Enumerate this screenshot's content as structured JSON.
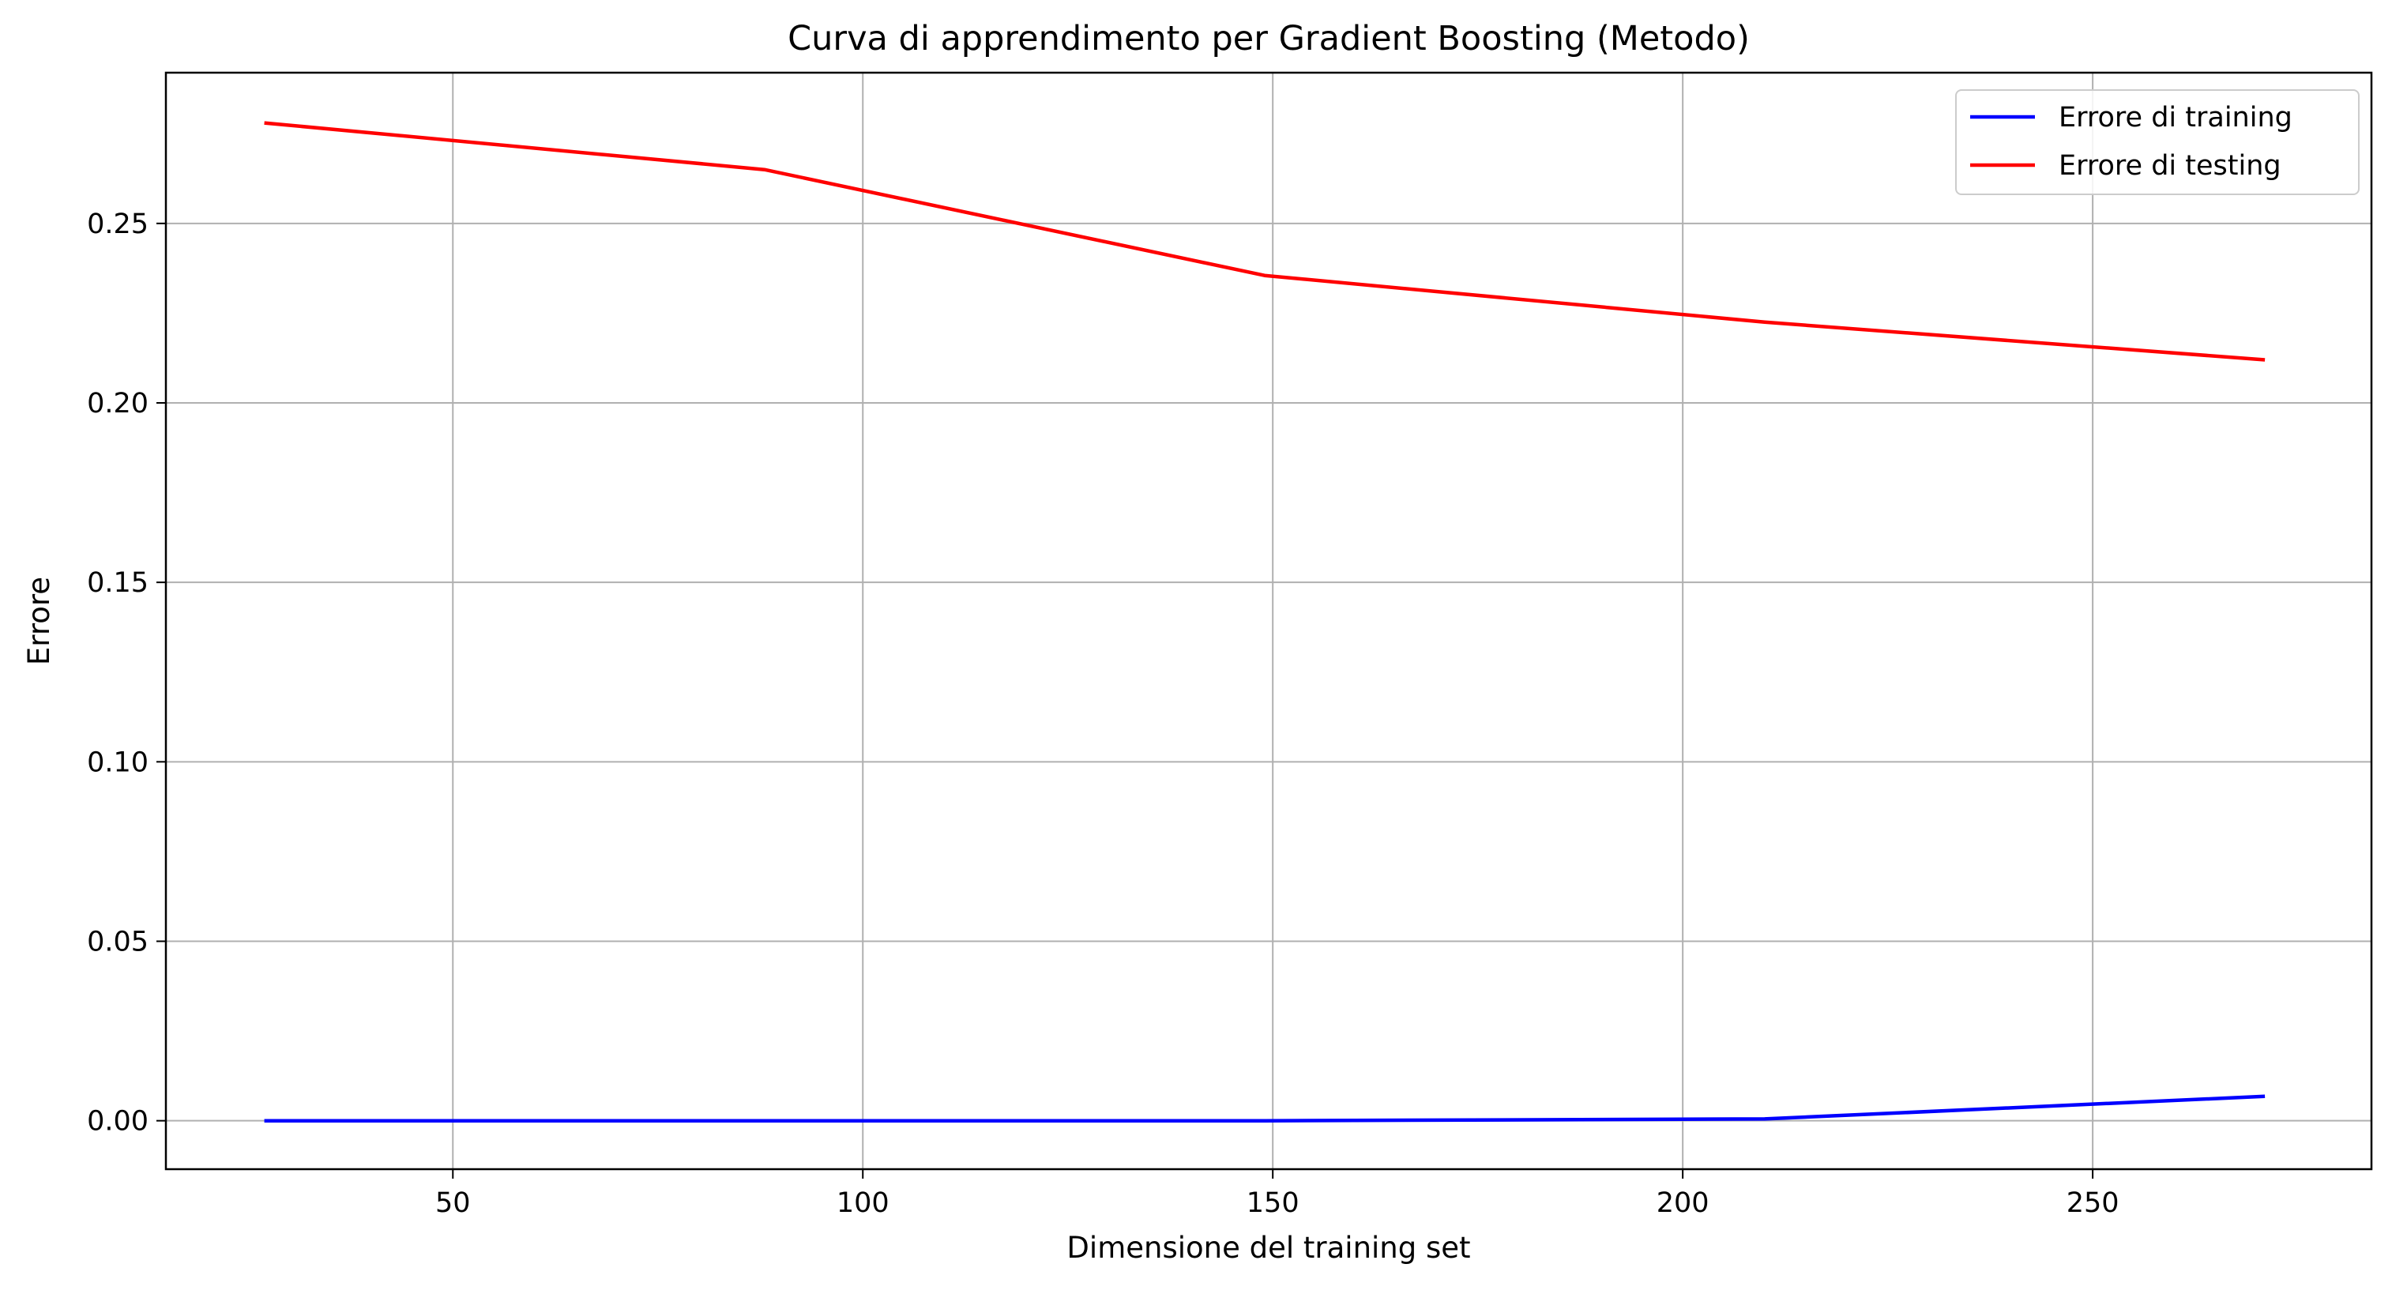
{
  "chart_data": {
    "type": "line",
    "title": "Curva di apprendimento per Gradient Boosting (Metodo)",
    "xlabel": "Dimensione del training set",
    "ylabel": "Errore",
    "xlim": [
      15,
      284
    ],
    "ylim": [
      -0.0135,
      0.292
    ],
    "xticks": [
      50,
      100,
      150,
      200,
      250
    ],
    "xtick_labels": [
      "50",
      "100",
      "150",
      "200",
      "250"
    ],
    "yticks": [
      0.0,
      0.05,
      0.1,
      0.15,
      0.2,
      0.25
    ],
    "ytick_labels": [
      "0.00",
      "0.05",
      "0.10",
      "0.15",
      "0.20",
      "0.25"
    ],
    "grid": true,
    "legend_position": "upper right",
    "x": [
      27,
      88,
      149,
      210,
      271
    ],
    "series": [
      {
        "name": "Errore di training",
        "color": "#0000ff",
        "values": [
          0.0,
          0.0,
          0.0,
          0.0005,
          0.0068
        ]
      },
      {
        "name": "Errore di testing",
        "color": "#ff0000",
        "values": [
          0.278,
          0.265,
          0.2355,
          0.2225,
          0.212
        ]
      }
    ]
  }
}
